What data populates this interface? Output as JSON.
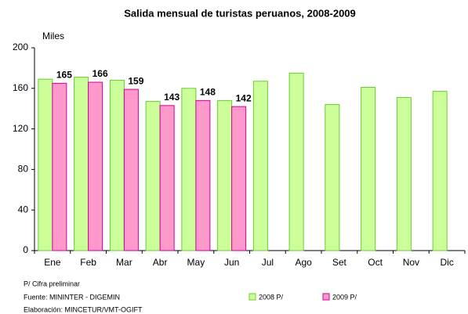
{
  "chart_data": {
    "type": "bar",
    "title": "Salida mensual de turistas peruanos, 2008-2009",
    "y_label": "Miles",
    "categories": [
      "Ene",
      "Feb",
      "Mar",
      "Abr",
      "May",
      "Jun",
      "Jul",
      "Ago",
      "Set",
      "Oct",
      "Nov",
      "Dic"
    ],
    "series": [
      {
        "name": "2008 P/",
        "color": "#ccff99",
        "stroke": "#66cc33",
        "values": [
          169,
          171,
          168,
          147,
          160,
          148,
          167,
          175,
          144,
          161,
          151,
          157
        ]
      },
      {
        "name": "2009 P/",
        "color": "#ff99cc",
        "stroke": "#cc0099",
        "values": [
          165,
          166,
          159,
          143,
          148,
          142,
          null,
          null,
          null,
          null,
          null,
          null
        ],
        "show_labels": true
      }
    ],
    "ylim": [
      0,
      200
    ],
    "yticks": [
      0,
      40,
      80,
      120,
      160,
      200
    ],
    "grid": false,
    "legend": "bottom",
    "notes": [
      "P/ Cifra preliminar",
      "Fuente: MININTER - DIGEMIN",
      "Elaboración: MINCETUR/VMT-OGIFT"
    ]
  }
}
